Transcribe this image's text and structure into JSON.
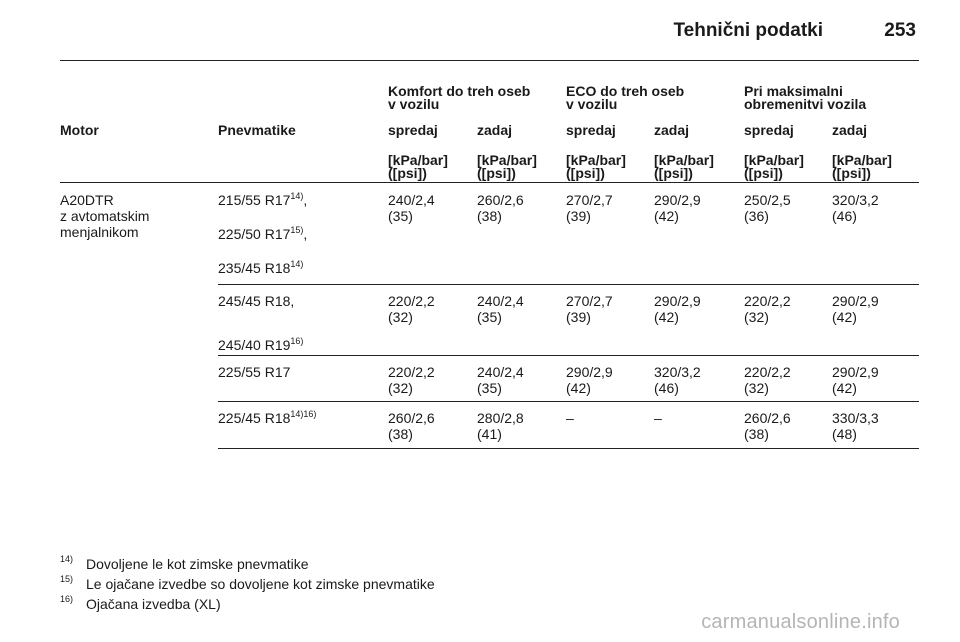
{
  "header": {
    "title": "Tehnični podatki",
    "page_number": "253"
  },
  "table": {
    "groups": [
      {
        "line1": "Komfort do treh oseb",
        "line2": "v vozilu"
      },
      {
        "line1": "ECO do treh oseb",
        "line2": "v vozilu"
      },
      {
        "line1": "Pri maksimalni",
        "line2": "obremenitvi vozila"
      }
    ],
    "col_motor": "Motor",
    "col_tyres": "Pnevmatike",
    "sub": [
      "spredaj",
      "zadaj",
      "spredaj",
      "zadaj",
      "spredaj",
      "zadaj"
    ],
    "unit1": "[kPa/bar]",
    "unit2": "([psi])",
    "motor": [
      "A20DTR",
      "z avtomatskim",
      "menjalnikom"
    ],
    "groups_rows": [
      {
        "tyres": [
          {
            "text": "215/55 R17",
            "sup": "14)",
            "suffix": ","
          },
          {
            "text": "225/50 R17",
            "sup": "15)",
            "suffix": ","
          },
          {
            "text": "235/45 R18",
            "sup": "14)",
            "suffix": ""
          }
        ],
        "values": [
          [
            "240/2,4",
            "(35)"
          ],
          [
            "260/2,6",
            "(38)"
          ],
          [
            "270/2,7",
            "(39)"
          ],
          [
            "290/2,9",
            "(42)"
          ],
          [
            "250/2,5",
            "(36)"
          ],
          [
            "320/3,2",
            "(46)"
          ]
        ]
      },
      {
        "tyres": [
          {
            "text": "245/45 R18,",
            "sup": "",
            "suffix": ""
          },
          {
            "text": "245/40 R19",
            "sup": "16)",
            "suffix": ""
          }
        ],
        "values": [
          [
            "220/2,2",
            "(32)"
          ],
          [
            "240/2,4",
            "(35)"
          ],
          [
            "270/2,7",
            "(39)"
          ],
          [
            "290/2,9",
            "(42)"
          ],
          [
            "220/2,2",
            "(32)"
          ],
          [
            "290/2,9",
            "(42)"
          ]
        ]
      },
      {
        "tyres": [
          {
            "text": "225/55 R17",
            "sup": "",
            "suffix": ""
          }
        ],
        "values": [
          [
            "220/2,2",
            "(32)"
          ],
          [
            "240/2,4",
            "(35)"
          ],
          [
            "290/2,9",
            "(42)"
          ],
          [
            "320/3,2",
            "(46)"
          ],
          [
            "220/2,2",
            "(32)"
          ],
          [
            "290/2,9",
            "(42)"
          ]
        ]
      },
      {
        "tyres": [
          {
            "text": "225/45 R18",
            "sup": "14)16)",
            "suffix": ""
          }
        ],
        "values": [
          [
            "260/2,6",
            "(38)"
          ],
          [
            "280/2,8",
            "(41)"
          ],
          [
            "–",
            ""
          ],
          [
            "–",
            ""
          ],
          [
            "260/2,6",
            "(38)"
          ],
          [
            "330/3,3",
            "(48)"
          ]
        ]
      }
    ]
  },
  "footnotes": [
    {
      "mark": "14)",
      "text": "Dovoljene le kot zimske pnevmatike"
    },
    {
      "mark": "15)",
      "text": "Le ojačane izvedbe so dovoljene kot zimske pnevmatike"
    },
    {
      "mark": "16)",
      "text": "Ojačana izvedba (XL)"
    }
  ],
  "watermark": "carmanualsonline.info"
}
